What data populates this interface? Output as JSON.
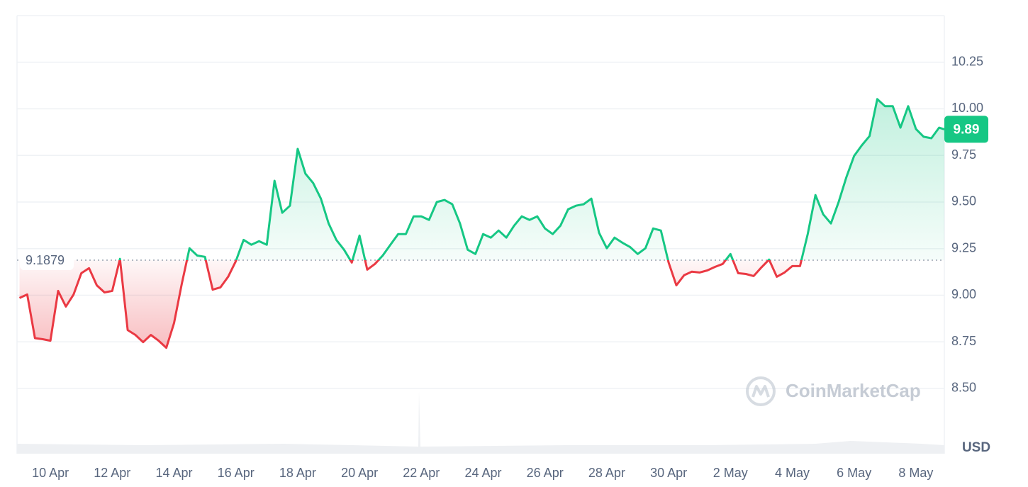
{
  "chart_data": {
    "type": "line",
    "baseline": 9.1879,
    "current_price": 9.89,
    "y_unit": "USD",
    "watermark": "CoinMarketCap",
    "up_color": "#16c784",
    "down_color": "#ea3943",
    "grid": true,
    "ylim": [
      8.15,
      10.5
    ],
    "yticks": [
      {
        "value": 8.5,
        "label": "8.50"
      },
      8.75,
      {
        "value": 9,
        "label": "9.00"
      },
      9.25,
      {
        "value": 9.5,
        "label": "9.50"
      },
      9.75,
      {
        "value": 10,
        "label": "10.00"
      },
      10.25
    ],
    "xlim": [
      -1.08,
      28.92
    ],
    "xticks": [
      {
        "value": 0,
        "label": "10 Apr"
      },
      {
        "value": 2,
        "label": "12 Apr"
      },
      {
        "value": 4,
        "label": "14 Apr"
      },
      {
        "value": 6,
        "label": "16 Apr"
      },
      {
        "value": 8,
        "label": "18 Apr"
      },
      {
        "value": 10,
        "label": "20 Apr"
      },
      {
        "value": 12,
        "label": "22 Apr"
      },
      {
        "value": 14,
        "label": "24 Apr"
      },
      {
        "value": 16,
        "label": "26 Apr"
      },
      {
        "value": 18,
        "label": "28 Apr"
      },
      {
        "value": 20,
        "label": "30 Apr"
      },
      {
        "value": 22,
        "label": "2 May"
      },
      {
        "value": 24,
        "label": "4 May"
      },
      {
        "value": 26,
        "label": "6 May"
      },
      {
        "value": 28,
        "label": "8 May"
      }
    ],
    "x": [
      -1,
      -0.75,
      -0.5,
      -0.25,
      0,
      0.25,
      0.5,
      0.75,
      1,
      1.25,
      1.5,
      1.75,
      2,
      2.25,
      2.5,
      2.75,
      3,
      3.25,
      3.5,
      3.75,
      4,
      4.25,
      4.5,
      4.75,
      5,
      5.25,
      5.5,
      5.75,
      6,
      6.25,
      6.5,
      6.75,
      7,
      7.25,
      7.5,
      7.75,
      8,
      8.25,
      8.5,
      8.75,
      9,
      9.25,
      9.5,
      9.75,
      10,
      10.25,
      10.5,
      10.75,
      11,
      11.25,
      11.5,
      11.75,
      12,
      12.25,
      12.5,
      12.75,
      13,
      13.25,
      13.5,
      13.75,
      14,
      14.25,
      14.5,
      14.75,
      15,
      15.25,
      15.5,
      15.75,
      16,
      16.25,
      16.5,
      16.75,
      17,
      17.25,
      17.5,
      17.75,
      18,
      18.25,
      18.5,
      18.75,
      19,
      19.25,
      19.5,
      19.75,
      20,
      20.25,
      20.5,
      20.75,
      21,
      21.25,
      21.5,
      21.75,
      22,
      22.25,
      22.5,
      22.75,
      23,
      23.25,
      23.5,
      23.75,
      24,
      24.25,
      24.5,
      24.75,
      25,
      25.25,
      25.5,
      25.75,
      26,
      26.25,
      26.5,
      26.75,
      27,
      27.25,
      27.5,
      27.75,
      28,
      28.25,
      28.5,
      28.75,
      28.92
    ],
    "values": [
      8.985,
      9.004,
      8.77,
      8.764,
      8.756,
      9.023,
      8.939,
      9.004,
      9.118,
      9.145,
      9.053,
      9.015,
      9.023,
      9.195,
      8.813,
      8.787,
      8.748,
      8.787,
      8.756,
      8.718,
      8.851,
      9.061,
      9.252,
      9.213,
      9.206,
      9.03,
      9.042,
      9.099,
      9.183,
      9.297,
      9.271,
      9.29,
      9.271,
      9.614,
      9.442,
      9.48,
      9.785,
      9.652,
      9.602,
      9.518,
      9.385,
      9.297,
      9.244,
      9.175,
      9.32,
      9.137,
      9.168,
      9.213,
      9.271,
      9.328,
      9.328,
      9.423,
      9.423,
      9.404,
      9.5,
      9.511,
      9.488,
      9.385,
      9.244,
      9.221,
      9.328,
      9.309,
      9.347,
      9.309,
      9.373,
      9.423,
      9.404,
      9.423,
      9.358,
      9.328,
      9.373,
      9.461,
      9.48,
      9.488,
      9.518,
      9.335,
      9.252,
      9.309,
      9.282,
      9.259,
      9.221,
      9.252,
      9.358,
      9.347,
      9.175,
      9.053,
      9.107,
      9.126,
      9.122,
      9.133,
      9.152,
      9.168,
      9.221,
      9.118,
      9.114,
      9.103,
      9.149,
      9.191,
      9.099,
      9.122,
      9.156,
      9.156,
      9.328,
      9.537,
      9.434,
      9.385,
      9.5,
      9.633,
      9.747,
      9.804,
      9.854,
      10.052,
      10.014,
      10.014,
      9.899,
      10.014,
      9.892,
      9.85,
      9.842,
      9.899,
      9.89
    ]
  }
}
